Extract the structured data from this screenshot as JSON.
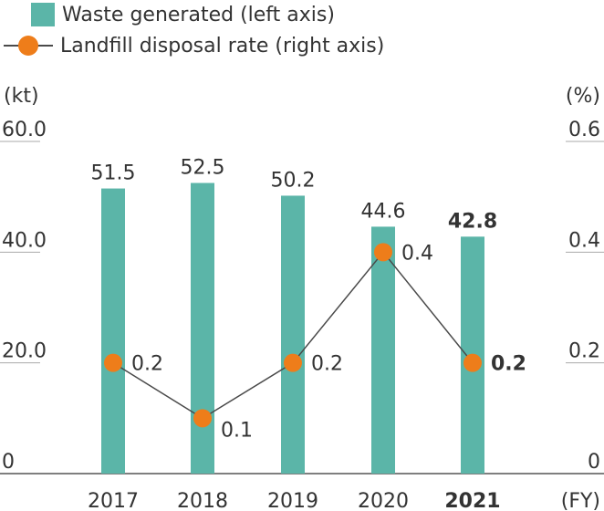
{
  "chart_data": {
    "type": "bar",
    "categories": [
      "2017",
      "2018",
      "2019",
      "2020",
      "2021"
    ],
    "highlight_category": "2021",
    "series": [
      {
        "name": "Waste generated (left axis)",
        "type": "bar",
        "axis": "left",
        "values": [
          51.5,
          52.5,
          50.2,
          44.6,
          42.8
        ],
        "labels": [
          "51.5",
          "52.5",
          "50.2",
          "44.6",
          "42.8"
        ],
        "color": "#5bb5a8"
      },
      {
        "name": "Landfill disposal rate (right axis)",
        "type": "line",
        "axis": "right",
        "values": [
          0.2,
          0.1,
          0.2,
          0.4,
          0.2
        ],
        "labels": [
          "0.2",
          "0.1",
          "0.2",
          "0.4",
          "0.2"
        ],
        "color": "#ee7d1a",
        "line_color": "#4a4a4a"
      }
    ],
    "y_left": {
      "label": "(kt)",
      "ylim": [
        0,
        60
      ],
      "ticks": [
        "0",
        "20.0",
        "40.0",
        "60.0"
      ],
      "tick_values": [
        0,
        20,
        40,
        60
      ]
    },
    "y_right": {
      "label": "(%)",
      "ylim": [
        0,
        0.6
      ],
      "ticks": [
        "0",
        "0.2",
        "0.4",
        "0.6"
      ],
      "tick_values": [
        0,
        0.2,
        0.4,
        0.6
      ]
    },
    "x_unit": "(FY)",
    "grid": false,
    "legend": "top-left"
  }
}
